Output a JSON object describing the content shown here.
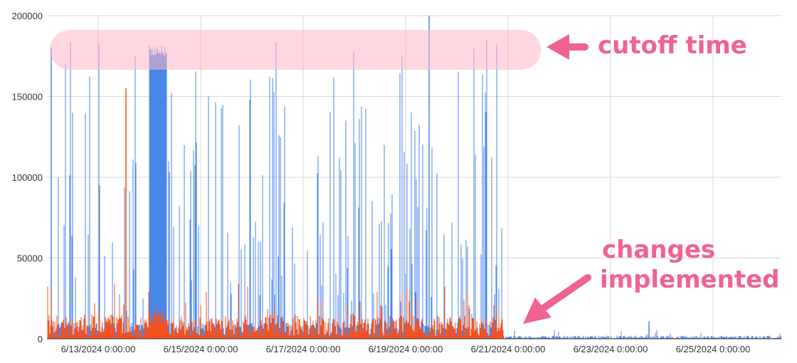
{
  "chart_data": {
    "type": "area",
    "title": "",
    "xlabel": "",
    "ylabel": "",
    "ylim": [
      0,
      200000
    ],
    "y_ticks": [
      "0",
      "50000",
      "100000",
      "150000",
      "200000"
    ],
    "x_range": [
      "2024-06-12T00:00",
      "2024-06-26T08:00"
    ],
    "x_ticks": [
      "6/13/2024 0:00:00",
      "6/15/2024 0:00:00",
      "6/17/2024 0:00:00",
      "6/19/2024 0:00:00",
      "6/21/2024 0:00:00",
      "6/23/2024 0:00:00",
      "6/25/2024 0:00:00"
    ],
    "grid": true,
    "legend": "none",
    "series": [
      {
        "color": "#4a86e8",
        "phase_before": {
          "range": [
            "2024-06-12",
            "2024-06-20T22:00"
          ],
          "spike_cap": 180000,
          "max": 200000,
          "typical_baseline": [
            1000,
            10000
          ]
        },
        "phase_after": {
          "range": [
            "2024-06-20T22:00",
            "2024-06-26T08:00"
          ],
          "typical_baseline": [
            0,
            2000
          ],
          "max": 11000
        }
      },
      {
        "color": "#f4511e",
        "phase_before": {
          "range": [
            "2024-06-12",
            "2024-06-20T22:00"
          ],
          "typical_baseline": [
            0,
            15000
          ],
          "max": 155000
        },
        "phase_after": {
          "range": [
            "2024-06-20T22:00",
            "2024-06-26T08:00"
          ],
          "typical_baseline": [
            0,
            500
          ]
        }
      }
    ],
    "annotations": [
      {
        "text": "cutoff time",
        "color": "#f06292"
      },
      {
        "text": "changes",
        "color": "#f06292"
      },
      {
        "text": "implemented",
        "color": "#f06292"
      }
    ]
  }
}
